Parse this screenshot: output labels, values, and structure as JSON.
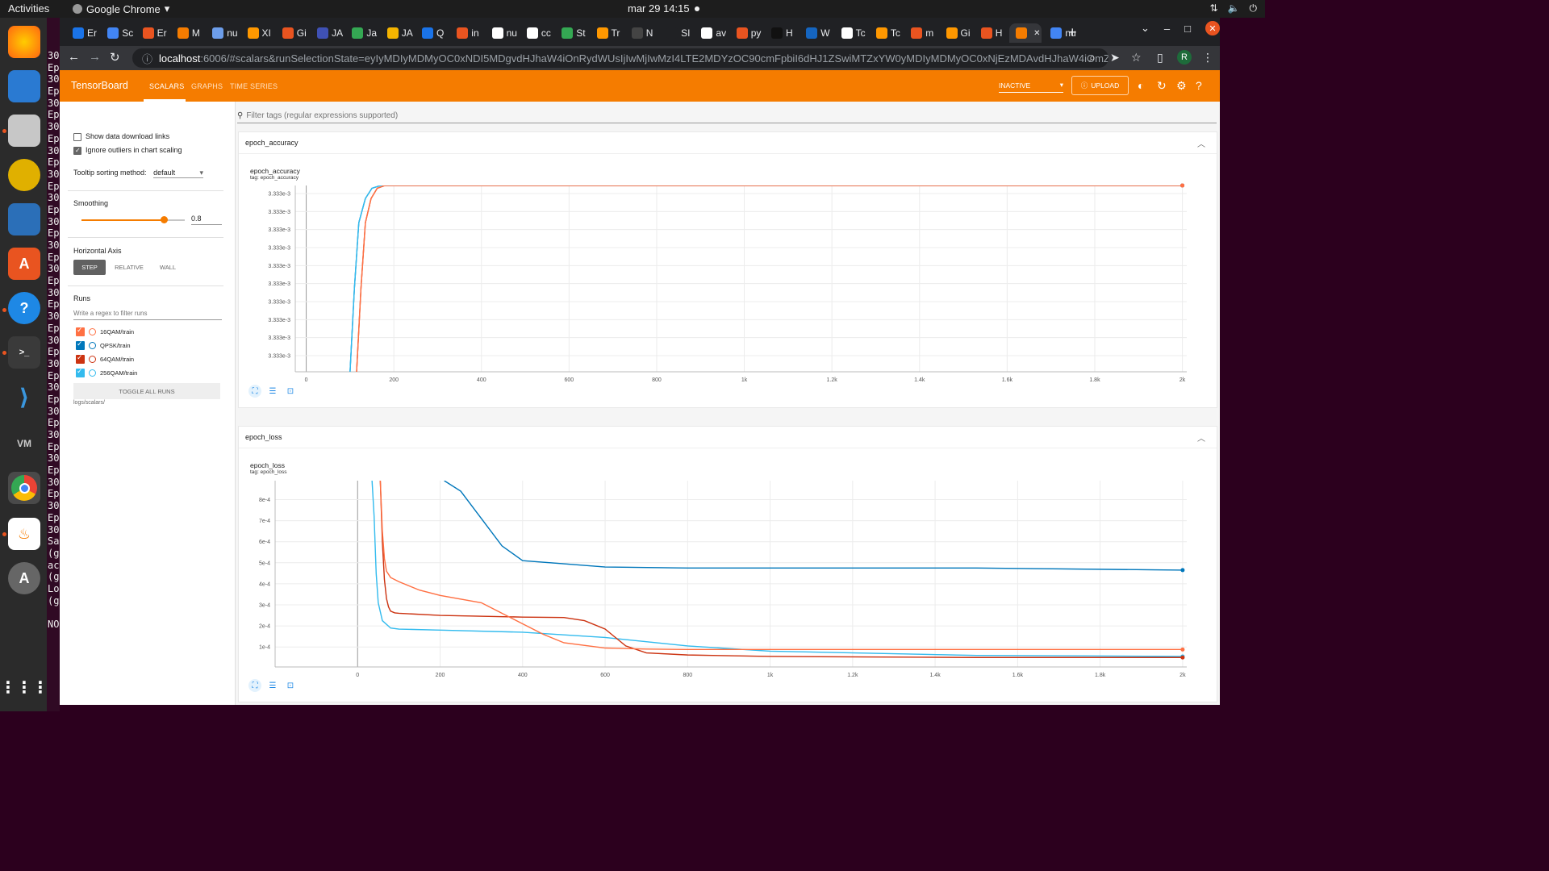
{
  "desktop": {
    "activities": "Activities",
    "app_name": "Google Chrome",
    "clock": "mar 29  14:15"
  },
  "terminal": {
    "lines": [
      "30",
      "Ep",
      "30",
      "Ep",
      "30",
      "Ep",
      "30",
      "Ep",
      "30",
      "Ep",
      "30",
      "Ep",
      "30",
      "Ep",
      "30",
      "Ep",
      "30",
      "Ep",
      "30",
      "Ep",
      "30",
      "Ep",
      "30",
      "Ep",
      "30",
      "Ep",
      "30",
      "Ep",
      "30",
      "Ep",
      "30",
      "Ep",
      "30",
      "Ep",
      "30",
      "Ep",
      "30",
      "Ep",
      "30",
      "Ep",
      "30",
      "Sa",
      "(g",
      "ac",
      "(g",
      "Lo",
      "(g",
      "",
      "NO"
    ]
  },
  "browser": {
    "tabs": [
      "Er",
      "Sc",
      "Er",
      "M",
      "nu",
      "XI",
      "Gi",
      "JA",
      "Ja",
      "JA",
      "Q",
      "in",
      "nu",
      "cc",
      "St",
      "Tr",
      "N",
      "SI",
      "av",
      "py",
      "H",
      "W",
      "Tc",
      "Tc",
      "m",
      "Gi",
      "H",
      "",
      "nu"
    ],
    "url_host": "localhost",
    "url_rest": ":6006/#scalars&runSelectionState=eyIyMDIyMDMyOC0xNDI5MDgvdHJhaW4iOnRydWUsIjIwMjIwMzI4LTE2MDYzOC90cmFpbiI6dHJ1ZSwiMTZxYW0yMDIyMDMyOC0xNjEzMDAvdHJhaW4iOmZhbHNlLCI2NHFhbTI...",
    "avatar": "R"
  },
  "tensorboard": {
    "brand": "TensorBoard",
    "nav": [
      "SCALARS",
      "GRAPHS",
      "TIME SERIES"
    ],
    "status": "INACTIVE",
    "upload": "UPLOAD"
  },
  "sidebar": {
    "show_download": "Show data download links",
    "ignore_outliers": "Ignore outliers in chart scaling",
    "tooltip_label": "Tooltip sorting method:",
    "tooltip_value": "default",
    "smoothing_label": "Smoothing",
    "smoothing_value": "0.8",
    "smoothing": 0.8,
    "haxis_label": "Horizontal Axis",
    "haxis_options": [
      "STEP",
      "RELATIVE",
      "WALL"
    ],
    "runs_label": "Runs",
    "runs_placeholder": "Write a regex to filter runs",
    "runs": [
      {
        "name": "16QAM/train",
        "color": "#ff7043",
        "checked": true
      },
      {
        "name": "QPSK/train",
        "color": "#0077bb",
        "checked": true
      },
      {
        "name": "64QAM/train",
        "color": "#cc3311",
        "checked": true
      },
      {
        "name": "256QAM/train",
        "color": "#33bbee",
        "checked": true
      }
    ],
    "toggle_all": "TOGGLE ALL RUNS",
    "logdir": "logs/scalars/"
  },
  "main": {
    "filter_placeholder": "Filter tags (regular expressions supported)"
  },
  "cards": [
    {
      "header": "epoch_accuracy",
      "title": "epoch_accuracy",
      "tag": "tag: epoch_accuracy"
    },
    {
      "header": "epoch_loss",
      "title": "epoch_loss",
      "tag": "tag: epoch_loss"
    }
  ],
  "chart_data": [
    {
      "type": "line",
      "title": "epoch_accuracy",
      "xlabel": "",
      "ylabel": "",
      "x_ticks": [
        "0",
        "200",
        "400",
        "600",
        "800",
        "1k",
        "1.2k",
        "1.4k",
        "1.6k",
        "1.8k",
        "2k"
      ],
      "y_ticks": [
        "3.333e-3",
        "3.333e-3",
        "3.333e-3",
        "3.333e-3",
        "3.333e-3",
        "3.333e-3",
        "3.333e-3",
        "3.333e-3",
        "3.333e-3",
        "3.333e-3"
      ],
      "xlim": [
        -25,
        2010
      ],
      "ylim": [
        0,
        1
      ],
      "series": [
        {
          "name": "QPSK/train",
          "color": "#0077bb",
          "x": [
            100,
            110,
            120,
            135,
            150,
            170,
            2000
          ],
          "y": [
            0,
            0.45,
            0.8,
            0.93,
            0.985,
            1,
            1
          ]
        },
        {
          "name": "256QAM/train",
          "color": "#33bbee",
          "x": [
            100,
            110,
            120,
            135,
            150,
            170,
            2000
          ],
          "y": [
            0,
            0.45,
            0.8,
            0.93,
            0.985,
            1,
            1
          ]
        },
        {
          "name": "64QAM/train",
          "color": "#cc3311",
          "x": [
            115,
            125,
            135,
            148,
            162,
            180,
            2000
          ],
          "y": [
            0,
            0.45,
            0.8,
            0.93,
            0.985,
            1,
            1
          ]
        },
        {
          "name": "16QAM/train",
          "color": "#ff7043",
          "x": [
            115,
            125,
            135,
            148,
            162,
            180,
            2000
          ],
          "y": [
            0,
            0.45,
            0.8,
            0.93,
            0.985,
            1,
            1
          ]
        }
      ]
    },
    {
      "type": "line",
      "title": "epoch_loss",
      "xlabel": "",
      "ylabel": "",
      "x_ticks": [
        "0",
        "200",
        "400",
        "600",
        "800",
        "1k",
        "1.2k",
        "1.4k",
        "1.6k",
        "1.8k",
        "2k"
      ],
      "y_ticks": [
        "1e-4",
        "2e-4",
        "3e-4",
        "4e-4",
        "5e-4",
        "6e-4",
        "7e-4",
        "8e-4"
      ],
      "xlim": [
        -200,
        2010
      ],
      "ylim": [
        5e-06,
        0.00089
      ],
      "series": [
        {
          "name": "QPSK/train",
          "color": "#0077bb",
          "x": [
            210,
            250,
            300,
            350,
            400,
            500,
            600,
            800,
            1000,
            1500,
            2000
          ],
          "y": [
            0.00089,
            0.00084,
            0.00071,
            0.00058,
            0.00051,
            0.000495,
            0.00048,
            0.000475,
            0.000475,
            0.000475,
            0.000465
          ]
        },
        {
          "name": "256QAM/train",
          "color": "#33bbee",
          "x": [
            35,
            40,
            45,
            50,
            60,
            80,
            100,
            200,
            400,
            600,
            800,
            1000,
            1500,
            2000
          ],
          "y": [
            0.00089,
            0.00072,
            0.00045,
            0.00031,
            0.000225,
            0.00019,
            0.000185,
            0.00018,
            0.00017,
            0.000145,
            0.000105,
            8e-05,
            6e-05,
            5.5e-05
          ]
        },
        {
          "name": "64QAM/train",
          "color": "#cc3311",
          "x": [
            55,
            60,
            65,
            70,
            75,
            80,
            90,
            100,
            200,
            400,
            500,
            550,
            600,
            650,
            700,
            800,
            1000,
            1500,
            2000
          ],
          "y": [
            0.00089,
            0.0006,
            0.00042,
            0.00033,
            0.00029,
            0.00027,
            0.000262,
            0.00026,
            0.00025,
            0.000242,
            0.00024,
            0.000225,
            0.000185,
            0.000105,
            7.2e-05,
            6.2e-05,
            5.5e-05,
            5e-05,
            5e-05
          ]
        },
        {
          "name": "16QAM/train",
          "color": "#ff7043",
          "x": [
            55,
            60,
            65,
            70,
            80,
            100,
            150,
            200,
            300,
            400,
            450,
            500,
            600,
            700,
            800,
            1000,
            1500,
            2000
          ],
          "y": [
            0.00089,
            0.00065,
            0.00052,
            0.00046,
            0.00043,
            0.00041,
            0.00037,
            0.000345,
            0.00031,
            0.00021,
            0.00016,
            0.00012,
            9.5e-05,
            9e-05,
            8.8e-05,
            8.8e-05,
            8.8e-05,
            8.8e-05
          ]
        }
      ]
    }
  ]
}
